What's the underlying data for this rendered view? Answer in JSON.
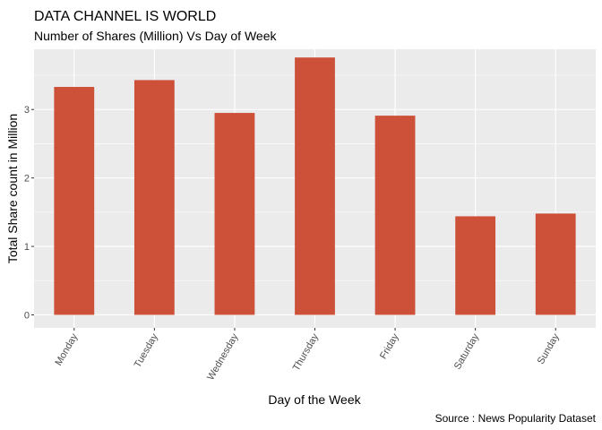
{
  "chart_data": {
    "type": "bar",
    "title": "DATA CHANNEL IS WORLD",
    "subtitle": "Number of Shares (Million) Vs Day of Week",
    "xlabel": "Day of the Week",
    "ylabel": "Total Share count in Million",
    "caption": "Source : News Popularity Dataset",
    "categories": [
      "Monday",
      "Tuesday",
      "Wednesday",
      "Thursday",
      "Friday",
      "Saturday",
      "Sunday"
    ],
    "values": [
      3.33,
      3.43,
      2.95,
      3.76,
      2.91,
      1.44,
      1.48
    ],
    "ylim": [
      -0.19,
      3.88
    ],
    "yticks": [
      "0",
      "1",
      "2",
      "3"
    ],
    "grid": true,
    "bar_color": "#cd5039",
    "panel_color": "#ebebeb"
  }
}
